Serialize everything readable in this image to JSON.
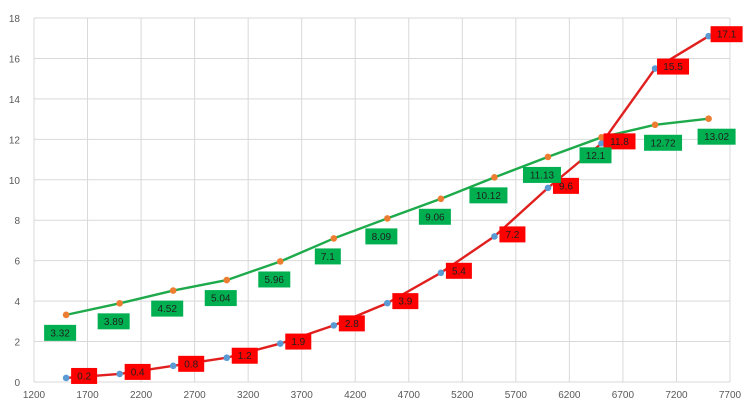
{
  "chart_data": {
    "type": "scatter",
    "title": "",
    "xlabel": "",
    "ylabel": "",
    "xlim": [
      1200,
      7700
    ],
    "ylim": [
      0,
      18
    ],
    "x_ticks": [
      1200,
      1700,
      2200,
      2700,
      3200,
      3700,
      4200,
      4700,
      5200,
      5700,
      6200,
      6700,
      7200,
      7700
    ],
    "y_ticks": [
      0,
      2,
      4,
      6,
      8,
      10,
      12,
      14,
      16,
      18
    ],
    "grid": true,
    "legend": "none",
    "series": [
      {
        "color": "#e0201e",
        "marker_color": "#5b9bd5",
        "label_bg": "#ff0000",
        "label_text_color": "#1f1f1f",
        "x": [
          1500,
          2000,
          2500,
          3000,
          3500,
          4000,
          4500,
          5000,
          5500,
          6000,
          6500,
          7000,
          7500
        ],
        "y": [
          0.2,
          0.4,
          0.8,
          1.2,
          1.9,
          2.8,
          3.9,
          5.4,
          7.2,
          9.6,
          11.8,
          15.5,
          17.1
        ],
        "labels": [
          "0.2",
          "0.4",
          "0.8",
          "1.2",
          "1.9",
          "2.8",
          "3.9",
          "5.4",
          "7.2",
          "9.6",
          "11.8",
          "15.5",
          "17.1"
        ]
      },
      {
        "color": "#1eaa4b",
        "marker_color": "#ed7d31",
        "label_bg": "#00b050",
        "label_text_color": "#1f1f1f",
        "x": [
          1500,
          2000,
          2500,
          3000,
          3500,
          4000,
          4500,
          5000,
          5500,
          6000,
          6500,
          7000,
          7500
        ],
        "y": [
          3.32,
          3.89,
          4.52,
          5.04,
          5.96,
          7.1,
          8.09,
          9.06,
          10.12,
          11.13,
          12.1,
          12.72,
          13.02
        ],
        "labels": [
          "3.32",
          "3.89",
          "4.52",
          "5.04",
          "5.96",
          "7.1",
          "8.09",
          "9.06",
          "10.12",
          "11.13",
          "12.1",
          "12.72",
          "13.02"
        ]
      }
    ]
  }
}
